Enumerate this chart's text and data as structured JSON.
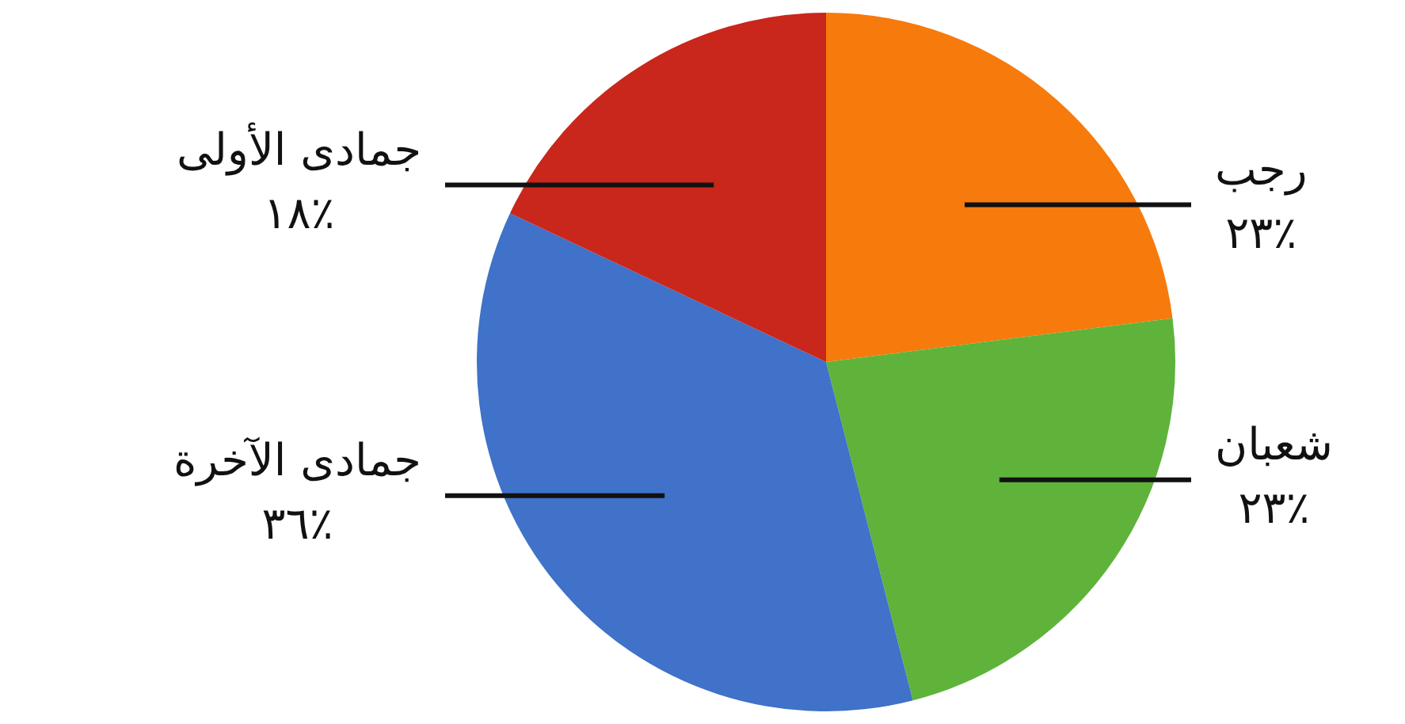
{
  "chart_data": {
    "type": "pie",
    "categories": [
      "رجب",
      "شعبان",
      "جمادى الآخرة",
      "جمادى الأولى"
    ],
    "values": [
      23,
      23,
      36,
      18
    ],
    "value_labels": [
      "٪٢٣",
      "٪٢٣",
      "٪٣٦",
      "٪١٨"
    ],
    "colors": [
      "#f77a0c",
      "#5fb33a",
      "#3f72c8",
      "#c9261c"
    ],
    "legend": false
  }
}
